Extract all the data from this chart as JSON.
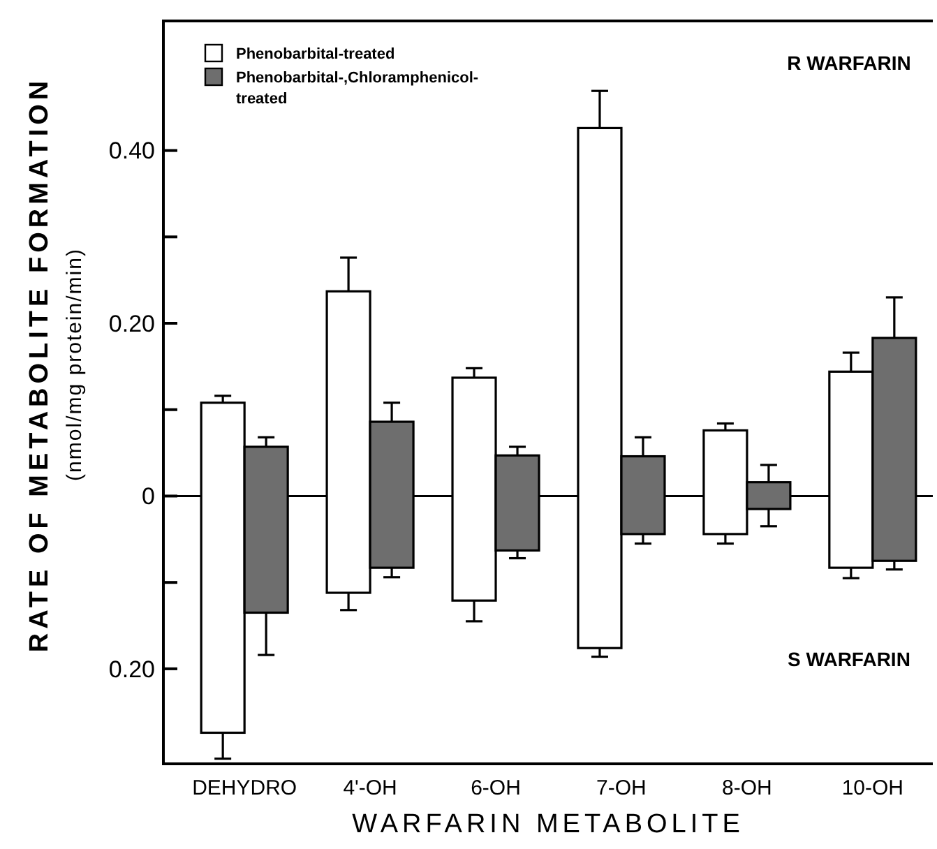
{
  "chart_data": {
    "type": "bar",
    "xlabel": "WARFARIN METABOLITE",
    "ylabel": "RATE OF METABOLITE FORMATION\n(nmol/mg protein/min)",
    "categories": [
      "DEHYDRO",
      "4'-OH",
      "6-OH",
      "7-OH",
      "8-OH",
      "10-OH"
    ],
    "series": [
      {
        "name": "Phenobarbital-treated",
        "color": "#ffffff",
        "base": [
          -0.274,
          -0.112,
          -0.121,
          -0.176,
          -0.044,
          -0.083
        ],
        "values": [
          0.382,
          0.349,
          0.258,
          0.602,
          0.12,
          0.227
        ],
        "errors": [
          [
            -0.304,
            0.116
          ],
          [
            -0.132,
            0.276
          ],
          [
            -0.145,
            0.148
          ],
          [
            -0.186,
            0.469
          ],
          [
            -0.055,
            0.084
          ],
          [
            -0.095,
            0.166
          ]
        ]
      },
      {
        "name": "Phenobarbital-,Chloramphenicol-treated",
        "color": "#6e6e6e",
        "base": [
          -0.135,
          -0.083,
          -0.063,
          -0.044,
          -0.015,
          -0.075
        ],
        "values": [
          0.192,
          0.169,
          0.11,
          0.09,
          0.031,
          0.258
        ],
        "errors": [
          [
            -0.184,
            0.068
          ],
          [
            -0.094,
            0.108
          ],
          [
            -0.072,
            0.057
          ],
          [
            -0.055,
            0.068
          ],
          [
            -0.035,
            0.036
          ],
          [
            -0.085,
            0.23
          ]
        ]
      }
    ],
    "ylim": [
      -0.31,
      0.55
    ],
    "yticks": [
      {
        "value": 0.4,
        "label": "0.40"
      },
      {
        "value": 0.3,
        "label": null
      },
      {
        "value": 0.2,
        "label": "0.20"
      },
      {
        "value": 0.1,
        "label": null
      },
      0,
      {
        "value": -0.1,
        "label": null
      },
      {
        "value": -0.2,
        "label": "0.20"
      }
    ],
    "ref_lines": [
      {
        "axis": "y",
        "value": 0,
        "label": null
      }
    ],
    "annotations": [
      "R WARFARIN",
      "S WARFARIN"
    ],
    "legend": "top left",
    "grid": false
  }
}
